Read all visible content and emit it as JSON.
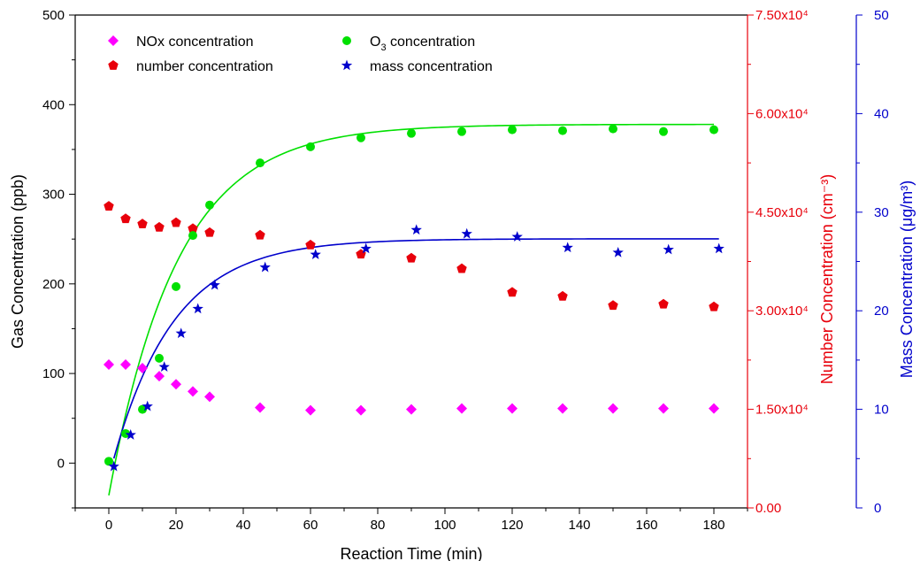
{
  "chart_data": {
    "type": "scatter",
    "xlabel": "Reaction Time (min)",
    "xlim": [
      -10,
      190
    ],
    "xticks": [
      0,
      20,
      40,
      60,
      80,
      100,
      120,
      140,
      160,
      180
    ],
    "axes": {
      "left": {
        "label": "Gas Concentration (ppb)",
        "ylim": [
          -50,
          500
        ],
        "ticks": [
          0,
          100,
          200,
          300,
          400,
          500
        ],
        "tick_labels": [
          "0",
          "100",
          "200",
          "300",
          "400",
          "500"
        ],
        "color": "#000000"
      },
      "right1": {
        "label": "Number Concentration (cm⁻³)",
        "ylim": [
          0,
          75000
        ],
        "ticks": [
          0,
          15000,
          30000,
          45000,
          60000,
          75000
        ],
        "tick_labels": [
          "0.00",
          "1.50x10⁴",
          "3.00x10⁴",
          "4.50x10⁴",
          "6.00x10⁴",
          "7.50x10⁴"
        ],
        "color": "#e8000b"
      },
      "right2": {
        "label": "Mass Concentration (μg/m³)",
        "ylim": [
          0,
          50
        ],
        "ticks": [
          0,
          10,
          20,
          30,
          40,
          50
        ],
        "tick_labels": [
          "0",
          "10",
          "20",
          "30",
          "40",
          "50"
        ],
        "color": "#0000cc"
      }
    },
    "series": [
      {
        "name": "NOx  concentration",
        "marker": "diamond",
        "color": "#ff00ff",
        "axis": "left",
        "x": [
          0,
          5,
          10,
          15,
          20,
          25,
          30,
          45,
          60,
          75,
          90,
          105,
          120,
          135,
          150,
          165,
          180
        ],
        "y": [
          110,
          110,
          106,
          97,
          88,
          80,
          74,
          62,
          59,
          59,
          60,
          61,
          61,
          61,
          61,
          61,
          61
        ]
      },
      {
        "name": "number concentration",
        "marker": "pentagon",
        "color": "#e8000b",
        "axis": "right1",
        "x": [
          0,
          5,
          10,
          15,
          20,
          25,
          30,
          45,
          60,
          75,
          90,
          105,
          120,
          135,
          150,
          165,
          180
        ],
        "y": [
          45900,
          44000,
          43200,
          42700,
          43400,
          42500,
          41900,
          41500,
          40000,
          38600,
          38000,
          36400,
          32800,
          32200,
          30800,
          31000,
          30600
        ]
      },
      {
        "name": "O3 concentration",
        "marker": "circle",
        "color": "#00e000",
        "axis": "left",
        "x": [
          0,
          5,
          10,
          15,
          20,
          25,
          30,
          45,
          60,
          75,
          90,
          105,
          120,
          135,
          150,
          165,
          180
        ],
        "y": [
          2,
          33,
          60,
          117,
          197,
          254,
          288,
          335,
          353,
          363,
          368,
          370,
          372,
          371,
          373,
          370,
          372
        ],
        "fit": {
          "color": "#00e000",
          "A": 378,
          "B": 414,
          "k": 0.049,
          "x_start": 0,
          "x_end": 180
        }
      },
      {
        "name": "mass concentration",
        "marker": "star",
        "color": "#0000cc",
        "axis": "right2",
        "x": [
          1.5,
          6.5,
          11.5,
          16.5,
          21.5,
          26.5,
          31.5,
          46.5,
          61.5,
          76.5,
          91.5,
          106.5,
          121.5,
          136.5,
          151.5,
          166.5,
          181.5
        ],
        "y": [
          4.2,
          7.4,
          10.3,
          14.3,
          17.7,
          20.2,
          22.6,
          24.4,
          25.7,
          26.3,
          28.2,
          27.8,
          27.5,
          26.4,
          25.9,
          26.2,
          26.3
        ],
        "fit": {
          "color": "#0000cc",
          "A": 27.3,
          "B": 24.2,
          "k": 0.055,
          "x_start": 1.5,
          "x_end": 181.5
        }
      }
    ],
    "legend": {
      "placement": "top-left",
      "entries": [
        {
          "label": "NOx  concentration",
          "marker": "diamond",
          "color": "#ff00ff"
        },
        {
          "label": "O",
          "sub": "3",
          "label_rest": " concentration",
          "marker": "circle",
          "color": "#00e000"
        },
        {
          "label": "number concentration",
          "marker": "pentagon",
          "color": "#e8000b"
        },
        {
          "label": "mass concentration",
          "marker": "star",
          "color": "#0000cc"
        }
      ]
    },
    "grid": false
  }
}
